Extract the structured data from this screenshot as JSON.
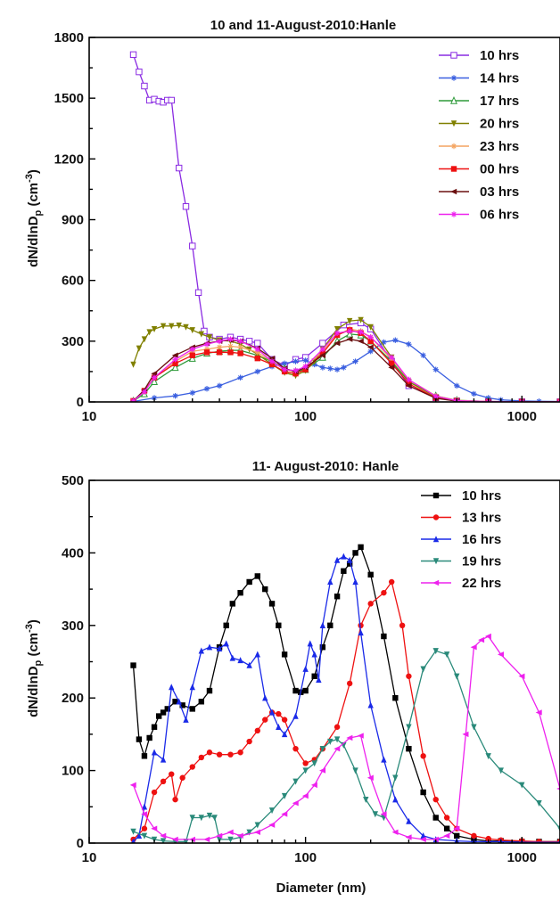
{
  "chart_data": [
    {
      "type": "line",
      "title": "10 and 11-August-2010:Hanle",
      "xlabel": "",
      "ylabel_main": "dN/dlnD",
      "ylabel_sub": "p",
      "ylabel_unit": " (cm",
      "ylabel_exp": "-3",
      "ylabel_close": ")",
      "xscale": "log",
      "xlim": [
        10,
        1500
      ],
      "ylim": [
        0,
        1800
      ],
      "xticks": [
        10,
        100,
        1000
      ],
      "xtick_labels": [
        "10",
        "100",
        "1000"
      ],
      "yticks": [
        0,
        300,
        600,
        900,
        1200,
        1500,
        1800
      ],
      "ytick_labels": [
        "0",
        "300",
        "600",
        "900",
        "1200",
        "1500",
        "1800"
      ],
      "legend_position": "top-right",
      "series": [
        {
          "name": "10 hrs",
          "color": "#8a2be2",
          "marker": "square-open",
          "x": [
            16,
            17,
            18,
            19,
            20,
            21,
            22,
            23,
            24,
            26,
            28,
            30,
            32,
            34,
            36,
            40,
            45,
            50,
            55,
            60,
            70,
            80,
            90,
            100,
            120,
            150,
            180,
            200,
            250,
            300,
            400,
            500,
            700,
            1000,
            1500
          ],
          "y": [
            1715,
            1630,
            1560,
            1490,
            1495,
            1485,
            1480,
            1490,
            1490,
            1155,
            965,
            770,
            540,
            350,
            320,
            310,
            320,
            310,
            300,
            290,
            210,
            180,
            210,
            220,
            290,
            380,
            390,
            360,
            200,
            80,
            20,
            5,
            2,
            1,
            1
          ]
        },
        {
          "name": "14 hrs",
          "color": "#3a5fe0",
          "marker": "star",
          "x": [
            16,
            20,
            25,
            30,
            35,
            40,
            50,
            60,
            70,
            80,
            90,
            100,
            110,
            120,
            130,
            140,
            150,
            170,
            200,
            230,
            260,
            300,
            350,
            400,
            500,
            600,
            700,
            800,
            1000,
            1200,
            1500
          ],
          "y": [
            2,
            20,
            30,
            45,
            65,
            80,
            120,
            150,
            175,
            190,
            200,
            205,
            185,
            170,
            165,
            160,
            170,
            200,
            250,
            295,
            305,
            285,
            230,
            160,
            80,
            40,
            20,
            10,
            5,
            3,
            2
          ]
        },
        {
          "name": "17 hrs",
          "color": "#2e9a3a",
          "marker": "triangle-open",
          "x": [
            16,
            18,
            20,
            25,
            30,
            35,
            40,
            45,
            50,
            60,
            70,
            80,
            90,
            100,
            120,
            140,
            160,
            180,
            200,
            250,
            300,
            400,
            500,
            700,
            1000,
            1500
          ],
          "y": [
            5,
            40,
            100,
            170,
            215,
            240,
            250,
            255,
            255,
            230,
            200,
            165,
            150,
            160,
            220,
            300,
            335,
            330,
            300,
            200,
            100,
            30,
            8,
            2,
            1,
            1
          ]
        },
        {
          "name": "20 hrs",
          "color": "#808000",
          "marker": "triangle-down",
          "x": [
            16,
            17,
            18,
            19,
            20,
            22,
            24,
            26,
            28,
            30,
            33,
            36,
            40,
            45,
            50,
            55,
            60,
            70,
            80,
            90,
            100,
            110,
            120,
            140,
            160,
            180,
            200,
            250,
            300,
            400,
            500,
            700,
            1000,
            1500
          ],
          "y": [
            185,
            265,
            310,
            345,
            360,
            375,
            375,
            378,
            370,
            355,
            335,
            320,
            305,
            300,
            285,
            260,
            235,
            185,
            145,
            130,
            155,
            200,
            260,
            360,
            400,
            405,
            370,
            220,
            100,
            25,
            6,
            2,
            1,
            1
          ]
        },
        {
          "name": "23 hrs",
          "color": "#f4a460",
          "marker": "star",
          "x": [
            16,
            18,
            20,
            25,
            30,
            35,
            40,
            45,
            50,
            60,
            70,
            80,
            90,
            100,
            120,
            140,
            160,
            180,
            200,
            250,
            300,
            400,
            500,
            700,
            1000,
            1500
          ],
          "y": [
            5,
            50,
            120,
            200,
            250,
            260,
            270,
            275,
            270,
            245,
            200,
            160,
            150,
            175,
            250,
            330,
            360,
            350,
            320,
            210,
            110,
            30,
            8,
            2,
            1,
            1
          ]
        },
        {
          "name": "00 hrs",
          "color": "#ee1111",
          "marker": "square",
          "x": [
            16,
            18,
            20,
            25,
            30,
            35,
            40,
            45,
            50,
            60,
            70,
            80,
            90,
            100,
            120,
            140,
            160,
            180,
            200,
            250,
            300,
            400,
            500,
            700,
            1000,
            1500
          ],
          "y": [
            5,
            55,
            120,
            190,
            230,
            245,
            245,
            245,
            240,
            215,
            185,
            150,
            140,
            160,
            240,
            330,
            355,
            340,
            300,
            190,
            90,
            20,
            5,
            1,
            1,
            1
          ]
        },
        {
          "name": "03 hrs",
          "color": "#6b1010",
          "marker": "triangle-left",
          "x": [
            16,
            18,
            20,
            25,
            30,
            35,
            40,
            45,
            50,
            60,
            70,
            80,
            90,
            100,
            120,
            140,
            160,
            180,
            200,
            250,
            300,
            400,
            500,
            700,
            1000,
            1500
          ],
          "y": [
            5,
            60,
            140,
            230,
            270,
            290,
            300,
            305,
            300,
            265,
            215,
            165,
            150,
            170,
            230,
            290,
            310,
            300,
            270,
            170,
            80,
            18,
            4,
            1,
            1,
            1
          ]
        },
        {
          "name": "06 hrs",
          "color": "#ee22ee",
          "marker": "star",
          "x": [
            16,
            18,
            20,
            25,
            30,
            35,
            40,
            45,
            50,
            60,
            70,
            80,
            90,
            100,
            120,
            140,
            160,
            180,
            200,
            250,
            300,
            400,
            500,
            700,
            1000,
            1500
          ],
          "y": [
            5,
            50,
            120,
            210,
            260,
            285,
            300,
            310,
            300,
            260,
            200,
            160,
            155,
            175,
            260,
            340,
            350,
            345,
            320,
            220,
            110,
            28,
            6,
            2,
            1,
            1
          ]
        }
      ]
    },
    {
      "type": "line",
      "title": "11- August-2010: Hanle",
      "xlabel": "Diameter (nm)",
      "ylabel_main": "dN/dlnD",
      "ylabel_sub": "p",
      "ylabel_unit": " (cm",
      "ylabel_exp": "-3",
      "ylabel_close": ")",
      "xscale": "log",
      "xlim": [
        10,
        1500
      ],
      "ylim": [
        0,
        500
      ],
      "xticks": [
        10,
        100,
        1000
      ],
      "xtick_labels": [
        "10",
        "100",
        "1000"
      ],
      "yticks": [
        0,
        100,
        200,
        300,
        400,
        500
      ],
      "ytick_labels": [
        "0",
        "100",
        "200",
        "300",
        "400",
        "500"
      ],
      "legend_position": "top-right",
      "series": [
        {
          "name": "10 hrs",
          "color": "#000000",
          "marker": "square",
          "x": [
            16,
            17,
            18,
            19,
            20,
            21,
            22,
            23,
            25,
            27,
            30,
            33,
            36,
            40,
            43,
            46,
            50,
            55,
            60,
            65,
            70,
            75,
            80,
            90,
            95,
            100,
            110,
            120,
            130,
            140,
            150,
            160,
            170,
            180,
            200,
            230,
            260,
            300,
            350,
            400,
            450,
            500,
            600,
            700,
            800,
            1000,
            1200,
            1500
          ],
          "y": [
            245,
            143,
            120,
            145,
            160,
            175,
            180,
            185,
            195,
            190,
            185,
            195,
            210,
            270,
            300,
            330,
            345,
            360,
            368,
            350,
            330,
            300,
            260,
            210,
            208,
            210,
            230,
            270,
            300,
            340,
            375,
            385,
            400,
            408,
            370,
            285,
            200,
            130,
            70,
            35,
            20,
            10,
            5,
            3,
            3,
            2,
            2,
            2
          ]
        },
        {
          "name": "13 hrs",
          "color": "#ee1111",
          "marker": "circle",
          "x": [
            16,
            18,
            20,
            22,
            24,
            25,
            27,
            30,
            33,
            36,
            40,
            45,
            50,
            55,
            60,
            65,
            70,
            75,
            80,
            90,
            100,
            110,
            120,
            140,
            160,
            180,
            200,
            230,
            250,
            280,
            300,
            350,
            400,
            450,
            500,
            600,
            700,
            800,
            1000,
            1200,
            1500
          ],
          "y": [
            5,
            20,
            70,
            85,
            95,
            60,
            90,
            105,
            118,
            125,
            122,
            122,
            125,
            140,
            155,
            170,
            180,
            178,
            170,
            130,
            110,
            115,
            130,
            160,
            220,
            300,
            330,
            345,
            360,
            300,
            230,
            120,
            60,
            35,
            20,
            10,
            6,
            4,
            3,
            2,
            2
          ]
        },
        {
          "name": "16 hrs",
          "color": "#1a2ae8",
          "marker": "triangle",
          "x": [
            16,
            17,
            18,
            20,
            22,
            24,
            26,
            28,
            30,
            33,
            36,
            40,
            43,
            46,
            50,
            55,
            60,
            65,
            70,
            75,
            80,
            90,
            100,
            105,
            110,
            115,
            120,
            130,
            140,
            150,
            160,
            170,
            180,
            200,
            230,
            260,
            300,
            350,
            400,
            500,
            600,
            800,
            1000,
            1500
          ],
          "y": [
            2,
            10,
            50,
            125,
            115,
            215,
            195,
            170,
            215,
            265,
            270,
            268,
            275,
            255,
            252,
            245,
            260,
            200,
            180,
            160,
            150,
            175,
            240,
            275,
            260,
            225,
            300,
            360,
            390,
            395,
            390,
            360,
            290,
            190,
            115,
            60,
            30,
            10,
            5,
            3,
            2,
            2,
            1,
            1
          ]
        },
        {
          "name": "19 hrs",
          "color": "#2a8a7a",
          "marker": "triangle-down",
          "x": [
            16,
            18,
            20,
            22,
            25,
            28,
            30,
            33,
            36,
            38,
            40,
            45,
            50,
            55,
            60,
            70,
            80,
            90,
            100,
            110,
            120,
            130,
            140,
            150,
            170,
            190,
            210,
            230,
            260,
            300,
            350,
            400,
            450,
            500,
            600,
            700,
            800,
            1000,
            1200,
            1500
          ],
          "y": [
            16,
            10,
            5,
            3,
            2,
            2,
            35,
            35,
            38,
            35,
            5,
            5,
            8,
            15,
            25,
            45,
            65,
            85,
            100,
            110,
            130,
            140,
            143,
            135,
            100,
            60,
            40,
            35,
            90,
            160,
            240,
            265,
            260,
            230,
            160,
            120,
            100,
            80,
            55,
            20
          ]
        },
        {
          "name": "22 hrs",
          "color": "#ee22ee",
          "marker": "triangle-left",
          "x": [
            16,
            18,
            20,
            22,
            25,
            30,
            35,
            40,
            45,
            50,
            60,
            70,
            80,
            90,
            100,
            110,
            120,
            140,
            160,
            180,
            200,
            230,
            260,
            300,
            350,
            400,
            450,
            500,
            550,
            600,
            650,
            700,
            800,
            1000,
            1200,
            1500
          ],
          "y": [
            80,
            40,
            20,
            10,
            5,
            5,
            5,
            10,
            15,
            10,
            15,
            25,
            40,
            55,
            65,
            80,
            100,
            130,
            145,
            148,
            90,
            40,
            15,
            8,
            5,
            5,
            10,
            20,
            150,
            270,
            280,
            285,
            260,
            230,
            180,
            75
          ]
        }
      ]
    }
  ]
}
